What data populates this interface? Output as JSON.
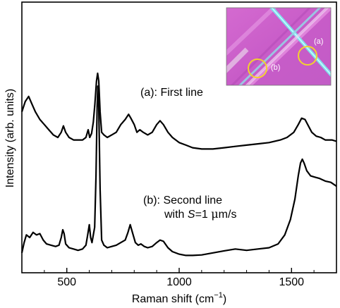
{
  "chart_data": {
    "type": "line",
    "xlabel": "Raman shift (cm",
    "xlabel_sup": "−1",
    "xlabel_end": ")",
    "ylabel": "Intensity (arb. units)",
    "xlim": [
      300,
      1700
    ],
    "x_ticks": [
      500,
      1000,
      1500
    ],
    "x_tick_labels": [
      "500",
      "1000",
      "1500"
    ],
    "y_ticks": "none",
    "grid": false,
    "annotations": {
      "a_label": "(a): First line",
      "b_label_line1": "(b): Second line",
      "b_label_line2_prefix": "with ",
      "b_label_line2_var": "S",
      "b_label_line2_mid": "=1 ",
      "b_label_line2_greek": "μ",
      "b_label_line2_suffix": "m/s"
    },
    "inset": {
      "label_a": "(a)",
      "label_b": "(b)",
      "description_colors": {
        "background": "#cc5fcc",
        "line_cyan": "#8fe8f0",
        "circle": "#f2d22e"
      }
    },
    "series": [
      {
        "key": "a",
        "color": "#000000",
        "points": [
          [
            300,
            0.6
          ],
          [
            315,
            0.64
          ],
          [
            330,
            0.66
          ],
          [
            345,
            0.63
          ],
          [
            360,
            0.6
          ],
          [
            380,
            0.57
          ],
          [
            400,
            0.55
          ],
          [
            420,
            0.53
          ],
          [
            440,
            0.51
          ],
          [
            460,
            0.5
          ],
          [
            475,
            0.52
          ],
          [
            485,
            0.545
          ],
          [
            495,
            0.52
          ],
          [
            510,
            0.5
          ],
          [
            530,
            0.49
          ],
          [
            550,
            0.49
          ],
          [
            570,
            0.49
          ],
          [
            585,
            0.5
          ],
          [
            595,
            0.53
          ],
          [
            602,
            0.5
          ],
          [
            610,
            0.515
          ],
          [
            618,
            0.56
          ],
          [
            625,
            0.63
          ],
          [
            632,
            0.72
          ],
          [
            637,
            0.75
          ],
          [
            642,
            0.72
          ],
          [
            648,
            0.6
          ],
          [
            655,
            0.52
          ],
          [
            665,
            0.51
          ],
          [
            680,
            0.5
          ],
          [
            700,
            0.51
          ],
          [
            720,
            0.52
          ],
          [
            740,
            0.55
          ],
          [
            760,
            0.57
          ],
          [
            775,
            0.59
          ],
          [
            785,
            0.575
          ],
          [
            800,
            0.55
          ],
          [
            812,
            0.52
          ],
          [
            825,
            0.53
          ],
          [
            840,
            0.52
          ],
          [
            860,
            0.51
          ],
          [
            880,
            0.52
          ],
          [
            900,
            0.55
          ],
          [
            915,
            0.565
          ],
          [
            930,
            0.55
          ],
          [
            950,
            0.52
          ],
          [
            970,
            0.5
          ],
          [
            1000,
            0.48
          ],
          [
            1030,
            0.47
          ],
          [
            1060,
            0.46
          ],
          [
            1100,
            0.455
          ],
          [
            1150,
            0.455
          ],
          [
            1200,
            0.46
          ],
          [
            1250,
            0.465
          ],
          [
            1300,
            0.47
          ],
          [
            1350,
            0.475
          ],
          [
            1400,
            0.48
          ],
          [
            1450,
            0.49
          ],
          [
            1480,
            0.5
          ],
          [
            1510,
            0.52
          ],
          [
            1530,
            0.55
          ],
          [
            1545,
            0.575
          ],
          [
            1560,
            0.57
          ],
          [
            1575,
            0.545
          ],
          [
            1590,
            0.52
          ],
          [
            1610,
            0.505
          ],
          [
            1630,
            0.5
          ],
          [
            1650,
            0.49
          ],
          [
            1680,
            0.49
          ],
          [
            1700,
            0.485
          ]
        ]
      },
      {
        "key": "b",
        "color": "#000000",
        "points": [
          [
            300,
            0.05
          ],
          [
            310,
            0.09
          ],
          [
            320,
            0.12
          ],
          [
            335,
            0.11
          ],
          [
            350,
            0.13
          ],
          [
            365,
            0.12
          ],
          [
            380,
            0.125
          ],
          [
            395,
            0.1
          ],
          [
            410,
            0.085
          ],
          [
            430,
            0.08
          ],
          [
            450,
            0.075
          ],
          [
            465,
            0.08
          ],
          [
            475,
            0.11
          ],
          [
            482,
            0.14
          ],
          [
            488,
            0.125
          ],
          [
            495,
            0.085
          ],
          [
            510,
            0.07
          ],
          [
            530,
            0.065
          ],
          [
            550,
            0.06
          ],
          [
            570,
            0.065
          ],
          [
            585,
            0.08
          ],
          [
            593,
            0.12
          ],
          [
            600,
            0.16
          ],
          [
            606,
            0.11
          ],
          [
            612,
            0.09
          ],
          [
            618,
            0.12
          ],
          [
            624,
            0.15
          ],
          [
            630,
            0.35
          ],
          [
            635,
            0.62
          ],
          [
            638,
            0.7
          ],
          [
            642,
            0.62
          ],
          [
            648,
            0.3
          ],
          [
            655,
            0.1
          ],
          [
            665,
            0.08
          ],
          [
            680,
            0.07
          ],
          [
            700,
            0.075
          ],
          [
            720,
            0.08
          ],
          [
            740,
            0.09
          ],
          [
            760,
            0.1
          ],
          [
            772,
            0.13
          ],
          [
            782,
            0.16
          ],
          [
            792,
            0.13
          ],
          [
            805,
            0.09
          ],
          [
            818,
            0.08
          ],
          [
            830,
            0.085
          ],
          [
            845,
            0.075
          ],
          [
            860,
            0.07
          ],
          [
            880,
            0.075
          ],
          [
            900,
            0.09
          ],
          [
            915,
            0.1
          ],
          [
            930,
            0.095
          ],
          [
            950,
            0.07
          ],
          [
            970,
            0.055
          ],
          [
            1000,
            0.045
          ],
          [
            1030,
            0.04
          ],
          [
            1060,
            0.04
          ],
          [
            1100,
            0.042
          ],
          [
            1150,
            0.05
          ],
          [
            1200,
            0.058
          ],
          [
            1250,
            0.065
          ],
          [
            1300,
            0.06
          ],
          [
            1350,
            0.065
          ],
          [
            1400,
            0.07
          ],
          [
            1440,
            0.085
          ],
          [
            1470,
            0.12
          ],
          [
            1495,
            0.18
          ],
          [
            1515,
            0.26
          ],
          [
            1530,
            0.35
          ],
          [
            1540,
            0.4
          ],
          [
            1548,
            0.415
          ],
          [
            1556,
            0.4
          ],
          [
            1568,
            0.37
          ],
          [
            1585,
            0.35
          ],
          [
            1605,
            0.345
          ],
          [
            1625,
            0.34
          ],
          [
            1650,
            0.33
          ],
          [
            1675,
            0.325
          ],
          [
            1700,
            0.31
          ]
        ]
      }
    ]
  }
}
